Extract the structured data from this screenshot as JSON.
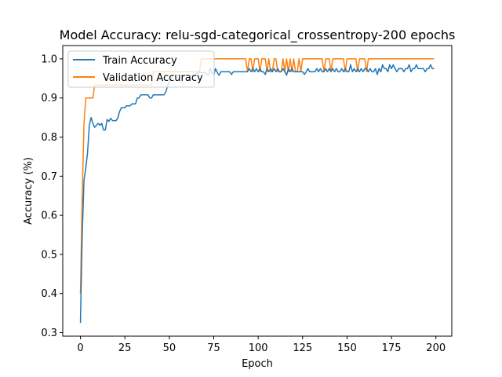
{
  "chart_data": {
    "type": "line",
    "title": "Model Accuracy: relu-sgd-categorical_crossentropy-200 epochs",
    "xlabel": "Epoch",
    "ylabel": "Accuracy (%)",
    "xlim": [
      -9.95,
      208.95
    ],
    "ylim": [
      0.291,
      1.034
    ],
    "xticks": [
      0,
      25,
      50,
      75,
      100,
      125,
      150,
      175,
      200
    ],
    "yticks": [
      0.3,
      0.4,
      0.5,
      0.6,
      0.7,
      0.8,
      0.9,
      1.0
    ],
    "ytick_labels": [
      "0.3",
      "0.4",
      "0.5",
      "0.6",
      "0.7",
      "0.8",
      "0.9",
      "1.0"
    ],
    "grid": false,
    "legend_position": "top-left",
    "series": [
      {
        "name": "Train Accuracy",
        "color": "#1f77b4",
        "points": [
          [
            0,
            0.325
          ],
          [
            1,
            0.55
          ],
          [
            2,
            0.69
          ],
          [
            3,
            0.72
          ],
          [
            4,
            0.76
          ],
          [
            5,
            0.83
          ],
          [
            6,
            0.85
          ],
          [
            7,
            0.835
          ],
          [
            8,
            0.825
          ],
          [
            9,
            0.83
          ],
          [
            10,
            0.835
          ],
          [
            11,
            0.83
          ],
          [
            12,
            0.835
          ],
          [
            13,
            0.818
          ],
          [
            14,
            0.818
          ],
          [
            15,
            0.845
          ],
          [
            16,
            0.84
          ],
          [
            17,
            0.848
          ],
          [
            18,
            0.842
          ],
          [
            19,
            0.842
          ],
          [
            20,
            0.842
          ],
          [
            21,
            0.848
          ],
          [
            22,
            0.865
          ],
          [
            23,
            0.875
          ],
          [
            24,
            0.875
          ],
          [
            25,
            0.875
          ],
          [
            26,
            0.88
          ],
          [
            27,
            0.88
          ],
          [
            28,
            0.88
          ],
          [
            29,
            0.885
          ],
          [
            30,
            0.885
          ],
          [
            31,
            0.885
          ],
          [
            32,
            0.9
          ],
          [
            33,
            0.9
          ],
          [
            34,
            0.908
          ],
          [
            35,
            0.908
          ],
          [
            36,
            0.908
          ],
          [
            37,
            0.908
          ],
          [
            38,
            0.908
          ],
          [
            39,
            0.9
          ],
          [
            40,
            0.9
          ],
          [
            41,
            0.908
          ],
          [
            42,
            0.908
          ],
          [
            43,
            0.908
          ],
          [
            44,
            0.908
          ],
          [
            45,
            0.908
          ],
          [
            46,
            0.908
          ],
          [
            47,
            0.908
          ],
          [
            48,
            0.915
          ],
          [
            49,
            0.93
          ],
          [
            50,
            0.94
          ],
          [
            51,
            0.95
          ],
          [
            52,
            0.958
          ],
          [
            53,
            0.958
          ],
          [
            54,
            0.958
          ],
          [
            55,
            0.958
          ],
          [
            56,
            0.958
          ],
          [
            57,
            0.958
          ],
          [
            58,
            0.958
          ],
          [
            59,
            0.958
          ],
          [
            60,
            0.958
          ],
          [
            62,
            0.958
          ],
          [
            64,
            0.958
          ],
          [
            66,
            0.965
          ],
          [
            68,
            0.965
          ],
          [
            70,
            0.965
          ],
          [
            72,
            0.958
          ],
          [
            73,
            0.975
          ],
          [
            74,
            0.965
          ],
          [
            75,
            0.958
          ],
          [
            76,
            0.975
          ],
          [
            77,
            0.965
          ],
          [
            78,
            0.958
          ],
          [
            79,
            0.967
          ],
          [
            80,
            0.967
          ],
          [
            82,
            0.967
          ],
          [
            84,
            0.967
          ],
          [
            85,
            0.96
          ],
          [
            86,
            0.967
          ],
          [
            88,
            0.967
          ],
          [
            90,
            0.967
          ],
          [
            92,
            0.967
          ],
          [
            94,
            0.967
          ],
          [
            95,
            0.975
          ],
          [
            96,
            0.967
          ],
          [
            97,
            0.975
          ],
          [
            98,
            0.967
          ],
          [
            99,
            0.975
          ],
          [
            100,
            0.967
          ],
          [
            101,
            0.975
          ],
          [
            102,
            0.967
          ],
          [
            103,
            0.967
          ],
          [
            104,
            0.96
          ],
          [
            105,
            0.975
          ],
          [
            106,
            0.967
          ],
          [
            107,
            0.975
          ],
          [
            108,
            0.967
          ],
          [
            109,
            0.975
          ],
          [
            110,
            0.967
          ],
          [
            111,
            0.975
          ],
          [
            112,
            0.967
          ],
          [
            113,
            0.967
          ],
          [
            114,
            0.975
          ],
          [
            115,
            0.967
          ],
          [
            116,
            0.958
          ],
          [
            117,
            0.975
          ],
          [
            118,
            0.967
          ],
          [
            119,
            0.975
          ],
          [
            120,
            0.967
          ],
          [
            121,
            0.967
          ],
          [
            122,
            0.967
          ],
          [
            123,
            0.967
          ],
          [
            124,
            0.967
          ],
          [
            125,
            0.967
          ],
          [
            126,
            0.96
          ],
          [
            127,
            0.967
          ],
          [
            128,
            0.975
          ],
          [
            129,
            0.967
          ],
          [
            130,
            0.967
          ],
          [
            131,
            0.967
          ],
          [
            132,
            0.967
          ],
          [
            133,
            0.975
          ],
          [
            134,
            0.967
          ],
          [
            135,
            0.975
          ],
          [
            136,
            0.967
          ],
          [
            137,
            0.967
          ],
          [
            138,
            0.975
          ],
          [
            139,
            0.967
          ],
          [
            140,
            0.975
          ],
          [
            141,
            0.967
          ],
          [
            142,
            0.975
          ],
          [
            143,
            0.967
          ],
          [
            144,
            0.975
          ],
          [
            145,
            0.967
          ],
          [
            146,
            0.967
          ],
          [
            147,
            0.975
          ],
          [
            148,
            0.967
          ],
          [
            149,
            0.975
          ],
          [
            150,
            0.967
          ],
          [
            151,
            0.967
          ],
          [
            152,
            0.985
          ],
          [
            153,
            0.967
          ],
          [
            154,
            0.975
          ],
          [
            155,
            0.967
          ],
          [
            156,
            0.975
          ],
          [
            157,
            0.967
          ],
          [
            158,
            0.975
          ],
          [
            159,
            0.967
          ],
          [
            160,
            0.975
          ],
          [
            161,
            0.975
          ],
          [
            162,
            0.967
          ],
          [
            163,
            0.975
          ],
          [
            164,
            0.967
          ],
          [
            165,
            0.967
          ],
          [
            166,
            0.975
          ],
          [
            167,
            0.96
          ],
          [
            168,
            0.975
          ],
          [
            169,
            0.967
          ],
          [
            170,
            0.985
          ],
          [
            171,
            0.975
          ],
          [
            172,
            0.975
          ],
          [
            173,
            0.967
          ],
          [
            174,
            0.985
          ],
          [
            175,
            0.975
          ],
          [
            176,
            0.985
          ],
          [
            177,
            0.975
          ],
          [
            178,
            0.967
          ],
          [
            179,
            0.975
          ],
          [
            180,
            0.975
          ],
          [
            181,
            0.975
          ],
          [
            182,
            0.967
          ],
          [
            183,
            0.975
          ],
          [
            184,
            0.975
          ],
          [
            185,
            0.985
          ],
          [
            186,
            0.967
          ],
          [
            187,
            0.975
          ],
          [
            188,
            0.975
          ],
          [
            189,
            0.985
          ],
          [
            190,
            0.975
          ],
          [
            191,
            0.975
          ],
          [
            192,
            0.975
          ],
          [
            193,
            0.975
          ],
          [
            194,
            0.967
          ],
          [
            195,
            0.975
          ],
          [
            196,
            0.975
          ],
          [
            197,
            0.985
          ],
          [
            198,
            0.975
          ],
          [
            199,
            0.975
          ]
        ]
      },
      {
        "name": "Validation Accuracy",
        "color": "#ff7f0e",
        "points": [
          [
            0,
            0.4
          ],
          [
            1,
            0.65
          ],
          [
            2,
            0.833
          ],
          [
            3,
            0.9
          ],
          [
            4,
            0.9
          ],
          [
            5,
            0.9
          ],
          [
            6,
            0.9
          ],
          [
            7,
            0.9
          ],
          [
            8,
            0.933
          ],
          [
            12,
            0.933
          ],
          [
            16,
            0.933
          ],
          [
            20,
            0.933
          ],
          [
            25,
            0.933
          ],
          [
            30,
            0.933
          ],
          [
            35,
            0.933
          ],
          [
            40,
            0.933
          ],
          [
            41,
            0.967
          ],
          [
            50,
            0.967
          ],
          [
            60,
            0.967
          ],
          [
            67,
            0.967
          ],
          [
            68,
            1.0
          ],
          [
            75,
            1.0
          ],
          [
            85,
            1.0
          ],
          [
            93,
            1.0
          ],
          [
            94,
            0.967
          ],
          [
            95,
            1.0
          ],
          [
            96,
            1.0
          ],
          [
            97,
            0.967
          ],
          [
            98,
            1.0
          ],
          [
            99,
            1.0
          ],
          [
            100,
            1.0
          ],
          [
            101,
            0.967
          ],
          [
            102,
            1.0
          ],
          [
            103,
            1.0
          ],
          [
            104,
            1.0
          ],
          [
            105,
            0.967
          ],
          [
            106,
            1.0
          ],
          [
            107,
            0.967
          ],
          [
            108,
            0.967
          ],
          [
            109,
            1.0
          ],
          [
            110,
            1.0
          ],
          [
            111,
            0.967
          ],
          [
            112,
            0.967
          ],
          [
            113,
            0.967
          ],
          [
            114,
            1.0
          ],
          [
            115,
            0.967
          ],
          [
            116,
            1.0
          ],
          [
            117,
            0.967
          ],
          [
            118,
            1.0
          ],
          [
            119,
            0.967
          ],
          [
            120,
            1.0
          ],
          [
            121,
            0.967
          ],
          [
            122,
            0.967
          ],
          [
            123,
            1.0
          ],
          [
            124,
            0.967
          ],
          [
            125,
            1.0
          ],
          [
            130,
            1.0
          ],
          [
            135,
            1.0
          ],
          [
            136,
            1.0
          ],
          [
            137,
            0.967
          ],
          [
            138,
            1.0
          ],
          [
            139,
            1.0
          ],
          [
            140,
            1.0
          ],
          [
            141,
            0.967
          ],
          [
            142,
            1.0
          ],
          [
            148,
            1.0
          ],
          [
            149,
            0.967
          ],
          [
            150,
            1.0
          ],
          [
            155,
            1.0
          ],
          [
            156,
            0.967
          ],
          [
            157,
            1.0
          ],
          [
            160,
            1.0
          ],
          [
            161,
            0.967
          ],
          [
            162,
            1.0
          ],
          [
            165,
            1.0
          ],
          [
            170,
            1.0
          ],
          [
            180,
            1.0
          ],
          [
            190,
            1.0
          ],
          [
            199,
            1.0
          ]
        ]
      }
    ]
  }
}
